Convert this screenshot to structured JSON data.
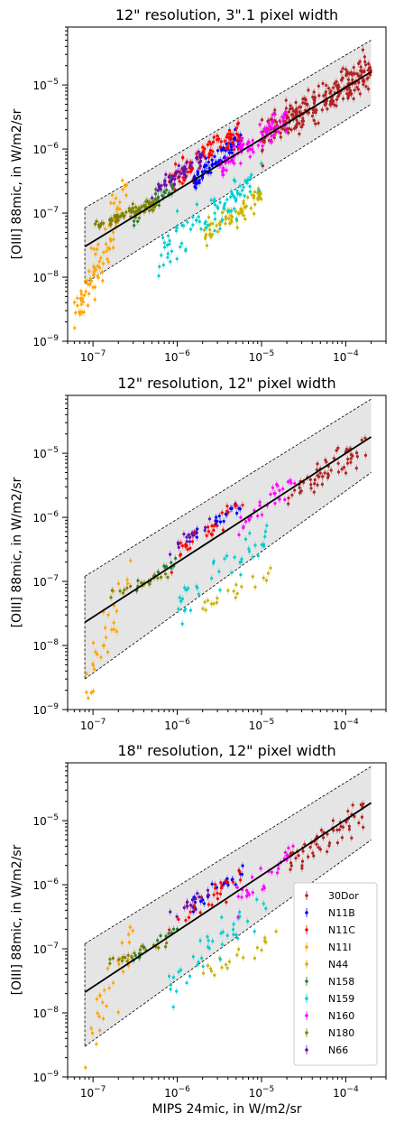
{
  "chart_data": [
    {
      "type": "scatter",
      "title": "12\" resolution, 3\".1 pixel width",
      "xlabel": "",
      "ylabel": "[OIII] 88mic, in W/m2/sr",
      "xscale": "log",
      "yscale": "log",
      "xlim": [
        5e-08,
        0.0003
      ],
      "ylim": [
        1e-09,
        8e-05
      ],
      "xticks": [
        "10^-7",
        "10^-6",
        "10^-5",
        "10^-4"
      ],
      "yticks": [
        "10^-9",
        "10^-8",
        "10^-7",
        "10^-6",
        "10^-5"
      ],
      "grid": false,
      "fit_line": {
        "x": [
          8e-08,
          0.0002
        ],
        "y": [
          3e-08,
          1.6e-05
        ]
      },
      "envelope": {
        "x": [
          8e-08,
          0.0002
        ],
        "upper": [
          1.2e-07,
          5e-05
        ],
        "lower": [
          8e-09,
          5e-06
        ]
      },
      "series": [
        {
          "name": "30Dor",
          "color": "#b22222",
          "x_range": [
            1e-05,
            0.0002
          ],
          "y_range": [
            1.5e-06,
            1.8e-05
          ],
          "n": 260
        },
        {
          "name": "N11B",
          "color": "#0000ff",
          "x_range": [
            1.5e-06,
            6e-06
          ],
          "y_range": [
            3e-07,
            1.5e-06
          ],
          "n": 80
        },
        {
          "name": "N11C",
          "color": "#ff0000",
          "x_range": [
            8e-07,
            6e-06
          ],
          "y_range": [
            3e-07,
            2e-06
          ],
          "n": 90
        },
        {
          "name": "N11I",
          "color": "#ffa500",
          "x_range": [
            6e-08,
            2.5e-07
          ],
          "y_range": [
            2e-09,
            2e-07
          ],
          "n": 90
        },
        {
          "name": "N44",
          "color": "#c8b400",
          "x_range": [
            2e-06,
            1e-05
          ],
          "y_range": [
            4e-08,
            2e-07
          ],
          "n": 70
        },
        {
          "name": "N158",
          "color": "#2e7d32",
          "x_range": [
            3e-07,
            1e-06
          ],
          "y_range": [
            8e-08,
            3e-07
          ],
          "n": 40
        },
        {
          "name": "N159",
          "color": "#00ced1",
          "x_range": [
            6e-07,
            1e-05
          ],
          "y_range": [
            2e-08,
            4e-07
          ],
          "n": 90
        },
        {
          "name": "N160",
          "color": "#ff00ff",
          "x_range": [
            3e-06,
            2e-05
          ],
          "y_range": [
            5e-07,
            3e-06
          ],
          "n": 90
        },
        {
          "name": "N180",
          "color": "#808000",
          "x_range": [
            1e-07,
            6e-07
          ],
          "y_range": [
            6e-08,
            1.5e-07
          ],
          "n": 80
        },
        {
          "name": "N66",
          "color": "#6a0dad",
          "x_range": [
            5e-07,
            2e-06
          ],
          "y_range": [
            2e-07,
            8e-07
          ],
          "n": 50
        }
      ]
    },
    {
      "type": "scatter",
      "title": "12\" resolution, 12\" pixel width",
      "xlabel": "",
      "ylabel": "[OIII] 88mic, in W/m2/sr",
      "xscale": "log",
      "yscale": "log",
      "xlim": [
        5e-08,
        0.0003
      ],
      "ylim": [
        1e-09,
        8e-05
      ],
      "xticks": [
        "10^-7",
        "10^-6",
        "10^-5",
        "10^-4"
      ],
      "yticks": [
        "10^-9",
        "10^-8",
        "10^-7",
        "10^-6",
        "10^-5"
      ],
      "grid": false,
      "fit_line": {
        "x": [
          8e-08,
          0.0002
        ],
        "y": [
          2.3e-08,
          1.8e-05
        ]
      },
      "envelope": {
        "x": [
          8e-08,
          0.0002
        ],
        "upper": [
          1.2e-07,
          7e-05
        ],
        "lower": [
          3e-09,
          5e-06
        ]
      },
      "series": [
        {
          "name": "30Dor",
          "color": "#b22222",
          "x_range": [
            2e-05,
            0.00018
          ],
          "y_range": [
            2e-06,
            1.4e-05
          ],
          "n": 60
        },
        {
          "name": "N11B",
          "color": "#0000ff",
          "x_range": [
            1.5e-06,
            6e-06
          ],
          "y_range": [
            5e-07,
            1.5e-06
          ],
          "n": 25
        },
        {
          "name": "N11C",
          "color": "#ff0000",
          "x_range": [
            8e-07,
            6e-06
          ],
          "y_range": [
            2e-07,
            1.5e-06
          ],
          "n": 30
        },
        {
          "name": "N11I",
          "color": "#ffa500",
          "x_range": [
            8e-08,
            3e-07
          ],
          "y_range": [
            2e-09,
            1.5e-07
          ],
          "n": 30
        },
        {
          "name": "N44",
          "color": "#c8b400",
          "x_range": [
            2e-06,
            1.5e-05
          ],
          "y_range": [
            4e-08,
            1.5e-07
          ],
          "n": 20
        },
        {
          "name": "N158",
          "color": "#2e7d32",
          "x_range": [
            3e-07,
            1e-06
          ],
          "y_range": [
            7e-08,
            2e-07
          ],
          "n": 15
        },
        {
          "name": "N159",
          "color": "#00ced1",
          "x_range": [
            8e-07,
            1.2e-05
          ],
          "y_range": [
            3e-08,
            6e-07
          ],
          "n": 40
        },
        {
          "name": "N160",
          "color": "#ff00ff",
          "x_range": [
            5e-06,
            2.5e-05
          ],
          "y_range": [
            6e-07,
            3.5e-06
          ],
          "n": 30
        },
        {
          "name": "N180",
          "color": "#808000",
          "x_range": [
            1.5e-07,
            8e-07
          ],
          "y_range": [
            6e-08,
            1.3e-07
          ],
          "n": 20
        },
        {
          "name": "N66",
          "color": "#6a0dad",
          "x_range": [
            8e-07,
            2.5e-06
          ],
          "y_range": [
            3e-07,
            9e-07
          ],
          "n": 15
        }
      ]
    },
    {
      "type": "scatter",
      "title": "18\" resolution, 12\" pixel width",
      "xlabel": "MIPS 24mic, in W/m2/sr",
      "ylabel": "[OIII] 88mic, in W/m2/sr",
      "xscale": "log",
      "yscale": "log",
      "xlim": [
        5e-08,
        0.0003
      ],
      "ylim": [
        1e-09,
        8e-05
      ],
      "xticks": [
        "10^-7",
        "10^-6",
        "10^-5",
        "10^-4"
      ],
      "yticks": [
        "10^-9",
        "10^-8",
        "10^-7",
        "10^-6",
        "10^-5"
      ],
      "grid": false,
      "legend": "lower-right",
      "fit_line": {
        "x": [
          8e-08,
          0.0002
        ],
        "y": [
          2.1e-08,
          1.9e-05
        ]
      },
      "envelope": {
        "x": [
          8e-08,
          0.0002
        ],
        "upper": [
          1.2e-07,
          7e-05
        ],
        "lower": [
          3e-09,
          5e-06
        ]
      },
      "series": [
        {
          "name": "30Dor",
          "color": "#b22222",
          "x_range": [
            2e-05,
            0.00018
          ],
          "y_range": [
            2e-06,
            1.5e-05
          ],
          "n": 60
        },
        {
          "name": "N11B",
          "color": "#0000ff",
          "x_range": [
            1.5e-06,
            6e-06
          ],
          "y_range": [
            5e-07,
            1.5e-06
          ],
          "n": 25
        },
        {
          "name": "N11C",
          "color": "#ff0000",
          "x_range": [
            8e-07,
            6e-06
          ],
          "y_range": [
            2e-07,
            1.5e-06
          ],
          "n": 30
        },
        {
          "name": "N11I",
          "color": "#ffa500",
          "x_range": [
            8e-08,
            3e-07
          ],
          "y_range": [
            2e-09,
            1.5e-07
          ],
          "n": 30
        },
        {
          "name": "N44",
          "color": "#c8b400",
          "x_range": [
            2e-06,
            1.5e-05
          ],
          "y_range": [
            4e-08,
            1.5e-07
          ],
          "n": 20
        },
        {
          "name": "N158",
          "color": "#2e7d32",
          "x_range": [
            3e-07,
            1e-06
          ],
          "y_range": [
            7e-08,
            2e-07
          ],
          "n": 15
        },
        {
          "name": "N159",
          "color": "#00ced1",
          "x_range": [
            8e-07,
            1.2e-05
          ],
          "y_range": [
            3e-08,
            6e-07
          ],
          "n": 40
        },
        {
          "name": "N160",
          "color": "#ff00ff",
          "x_range": [
            5e-06,
            2.5e-05
          ],
          "y_range": [
            6e-07,
            3.5e-06
          ],
          "n": 30
        },
        {
          "name": "N180",
          "color": "#808000",
          "x_range": [
            1.5e-07,
            8e-07
          ],
          "y_range": [
            6e-08,
            1.3e-07
          ],
          "n": 20
        },
        {
          "name": "N66",
          "color": "#6a0dad",
          "x_range": [
            8e-07,
            2.5e-06
          ],
          "y_range": [
            3e-07,
            9e-07
          ],
          "n": 15
        }
      ]
    }
  ]
}
